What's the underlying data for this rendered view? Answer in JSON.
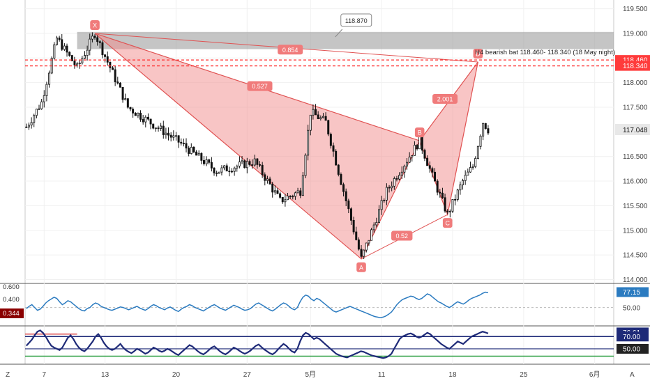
{
  "chart_data": {
    "type": "candlestick",
    "title": "",
    "instrument_note": "H4 bearish bat 118.460- 118.340 (18 May night)",
    "price_axis": {
      "ylim": [
        113.95,
        119.65
      ],
      "ticks": [
        {
          "value": 119.5,
          "label": "119.500"
        },
        {
          "value": 119.0,
          "label": "119.000"
        },
        {
          "value": 118.5,
          "label": ""
        },
        {
          "value": 118.0,
          "label": "118.000"
        },
        {
          "value": 117.5,
          "label": "117.500"
        },
        {
          "value": 116.5,
          "label": "116.500"
        },
        {
          "value": 116.0,
          "label": "116.000"
        },
        {
          "value": 115.5,
          "label": "115.500"
        },
        {
          "value": 115.0,
          "label": "115.000"
        },
        {
          "value": 114.5,
          "label": "114.500"
        },
        {
          "value": 114.0,
          "label": "114.000"
        }
      ],
      "last_price": {
        "value": 117.048,
        "label": "117.048"
      },
      "level_tags": [
        {
          "value": 118.46,
          "label": "118.460",
          "color": "#ff3b3b"
        },
        {
          "value": 118.34,
          "label": "118.340",
          "color": "#ff3b3b"
        }
      ]
    },
    "time_axis": {
      "ticks": [
        {
          "index": 7,
          "label": "7"
        },
        {
          "index": 31,
          "label": "13"
        },
        {
          "index": 59,
          "label": "20"
        },
        {
          "index": 87,
          "label": "27"
        },
        {
          "index": 112,
          "label": "5月"
        },
        {
          "index": 140,
          "label": "11"
        },
        {
          "index": 168,
          "label": "18"
        },
        {
          "index": 196,
          "label": "25"
        },
        {
          "index": 224,
          "label": "6月"
        }
      ]
    },
    "harmonic_pattern": {
      "points": [
        {
          "label": "X",
          "index": 27,
          "price": 119.0
        },
        {
          "label": "A",
          "index": 132,
          "price": 114.42
        },
        {
          "label": "B",
          "index": 155,
          "price": 116.82
        },
        {
          "label": "C",
          "index": 166,
          "price": 115.32
        },
        {
          "label": "D",
          "index": 178,
          "price": 118.42
        }
      ],
      "ratios": [
        {
          "label": "0.527",
          "index": 92,
          "price": 117.93
        },
        {
          "label": "0.854",
          "index": 104,
          "price": 118.67
        },
        {
          "label": "2.001",
          "index": 165,
          "price": 117.67
        },
        {
          "label": "0.52",
          "index": 148,
          "price": 114.89
        }
      ],
      "fill_color": "#f28b8b"
    },
    "zone": {
      "from": 118.68,
      "to": 119.03,
      "start_index": 20,
      "label": "118.870",
      "label_index": 130
    },
    "dashed_levels": [
      118.46,
      118.34
    ],
    "rsi_panel": {
      "series_name": "",
      "current": "77.15",
      "ticks": [
        {
          "value": 0.6,
          "label": "0.600"
        },
        {
          "value": 0.4,
          "label": "0.400"
        }
      ],
      "mid_label": "50.00",
      "left_tag": "0.344",
      "color": "#2b7bc0",
      "values": [
        48,
        52,
        55,
        50,
        45,
        47,
        52,
        58,
        62,
        65,
        68,
        66,
        60,
        55,
        58,
        62,
        60,
        56,
        52,
        48,
        45,
        44,
        48,
        50,
        55,
        58,
        56,
        52,
        50,
        48,
        46,
        45,
        47,
        49,
        51,
        50,
        48,
        46,
        48,
        50,
        52,
        49,
        47,
        45,
        48,
        52,
        55,
        53,
        50,
        48,
        46,
        49,
        51,
        48,
        45,
        43,
        47,
        50,
        52,
        55,
        53,
        50,
        48,
        46,
        44,
        47,
        50,
        53,
        55,
        52,
        49,
        47,
        45,
        48,
        51,
        54,
        52,
        50,
        47,
        45,
        46,
        48,
        52,
        56,
        58,
        55,
        52,
        49,
        46,
        44,
        47,
        51,
        55,
        58,
        56,
        52,
        48,
        46,
        50,
        60,
        68,
        72,
        70,
        65,
        62,
        66,
        64,
        60,
        56,
        52,
        48,
        44,
        42,
        44,
        46,
        48,
        50,
        52,
        50,
        48,
        46,
        44,
        42,
        40,
        38,
        36,
        34,
        33,
        32,
        33,
        35,
        38,
        42,
        48,
        55,
        60,
        64,
        66,
        68,
        70,
        69,
        66,
        64,
        66,
        70,
        74,
        72,
        68,
        64,
        60,
        58,
        55,
        52,
        50,
        53,
        57,
        60,
        58,
        56,
        59,
        63,
        66,
        68,
        70,
        72,
        75,
        77.15,
        76
      ]
    },
    "stoch_panel": {
      "current": "76.61",
      "levels": [
        {
          "value": 70,
          "label": "70.00"
        },
        {
          "value": 50,
          "label": "50.00"
        }
      ],
      "k_color": "#1e2a78",
      "d_color": "#1e2a78",
      "values": [
        55,
        60,
        65,
        72,
        78,
        80,
        76,
        70,
        62,
        55,
        52,
        50,
        48,
        52,
        60,
        68,
        72,
        66,
        58,
        52,
        48,
        46,
        50,
        56,
        62,
        70,
        74,
        68,
        60,
        54,
        50,
        48,
        50,
        54,
        58,
        52,
        48,
        45,
        43,
        46,
        50,
        48,
        45,
        42,
        44,
        48,
        52,
        50,
        47,
        45,
        47,
        50,
        48,
        45,
        42,
        40,
        44,
        48,
        52,
        56,
        54,
        50,
        46,
        43,
        41,
        44,
        48,
        52,
        54,
        50,
        46,
        43,
        41,
        44,
        48,
        52,
        50,
        47,
        44,
        42,
        44,
        47,
        51,
        55,
        57,
        53,
        49,
        46,
        43,
        41,
        44,
        49,
        54,
        58,
        55,
        50,
        46,
        44,
        50,
        62,
        72,
        76,
        74,
        70,
        66,
        68,
        66,
        62,
        58,
        54,
        50,
        46,
        42,
        40,
        38,
        37,
        36,
        38,
        40,
        42,
        44,
        46,
        45,
        43,
        41,
        39,
        38,
        37,
        36,
        35,
        36,
        38,
        42,
        50,
        58,
        66,
        70,
        72,
        74,
        75,
        73,
        70,
        68,
        70,
        73,
        76,
        74,
        70,
        66,
        62,
        58,
        55,
        52,
        50,
        54,
        58,
        62,
        60,
        58,
        62,
        66,
        70,
        72,
        74,
        76,
        78,
        76.61,
        75
      ]
    },
    "corner_labels": {
      "left": "Z",
      "right": "A"
    }
  }
}
